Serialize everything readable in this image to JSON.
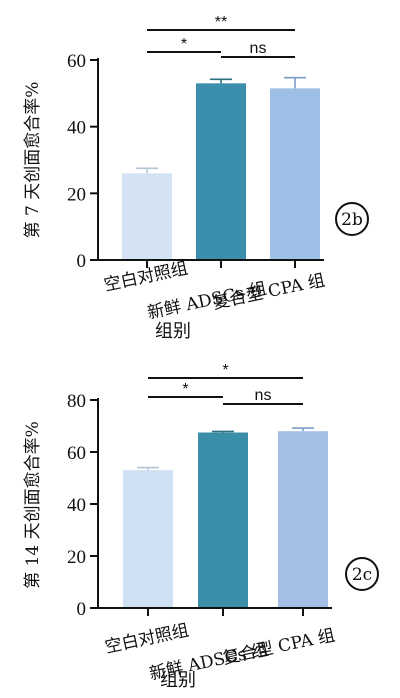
{
  "chart_data": [
    {
      "type": "bar",
      "panel": "2b",
      "ylabel": "第 7 天创面愈合率%",
      "xlabel": "组别",
      "categories": [
        "空白对照组",
        "新鲜 ADSCs 组",
        "复合型 CPA 组"
      ],
      "values": [
        26,
        53,
        51.5
      ],
      "errors": [
        1.5,
        1.2,
        3.2
      ],
      "ylim": [
        0,
        60
      ],
      "yticks": [
        0,
        20,
        40,
        60
      ],
      "colors": [
        "#d3e3f4",
        "#3b8fac",
        "#9fc0e6"
      ],
      "error_colors": [
        "#b3c6d8",
        "#2e6f86",
        "#7a9dc6"
      ],
      "comparisons": [
        {
          "from": 0,
          "to": 2,
          "label": "**"
        },
        {
          "from": 0,
          "to": 1,
          "label": "*"
        },
        {
          "from": 1,
          "to": 2,
          "label": "ns"
        }
      ]
    },
    {
      "type": "bar",
      "panel": "2c",
      "ylabel": "第 14 天创面愈合率%",
      "xlabel": "组别",
      "categories": [
        "空白对照组",
        "新鲜 ADSCs 组",
        "复合型 CPA 组"
      ],
      "values": [
        53,
        67.5,
        68
      ],
      "errors": [
        1.0,
        0.4,
        1.2
      ],
      "ylim": [
        0,
        80
      ],
      "yticks": [
        0,
        20,
        40,
        60,
        80
      ],
      "colors": [
        "#cfdff4",
        "#3a8ea7",
        "#a4bee6"
      ],
      "error_colors": [
        "#b3c6d8",
        "#2e6f86",
        "#7a9dc6"
      ],
      "comparisons": [
        {
          "from": 0,
          "to": 2,
          "label": "*"
        },
        {
          "from": 0,
          "to": 1,
          "label": "*"
        },
        {
          "from": 1,
          "to": 2,
          "label": "ns"
        }
      ]
    }
  ]
}
